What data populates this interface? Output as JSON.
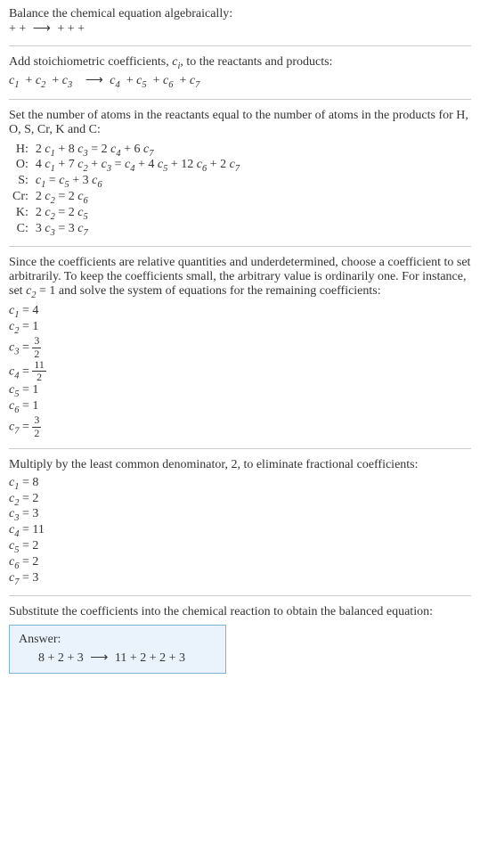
{
  "intro": {
    "line1": "Balance the chemical equation algebraically:",
    "line2_left": " +  + ",
    "line2_right": " +  +  + "
  },
  "step1": {
    "text": "Add stoichiometric coefficients, ",
    "ci": "c",
    "ci_sub": "i",
    "text2": ", to the reactants and products:",
    "eq_parts": [
      "c",
      "1",
      "  + c",
      "2",
      "  + c",
      "3",
      " ",
      "c",
      "4",
      "  + c",
      "5",
      "  + c",
      "6",
      "  + c",
      "7"
    ]
  },
  "step2": {
    "text": "Set the number of atoms in the reactants equal to the number of atoms in the products for H, O, S, Cr, K and C:",
    "rows": [
      {
        "elem": "H:",
        "eq": "2 c₁ + 8 c₃ = 2 c₄ + 6 c₇"
      },
      {
        "elem": "O:",
        "eq": "4 c₁ + 7 c₂ + c₃ = c₄ + 4 c₅ + 12 c₆ + 2 c₇"
      },
      {
        "elem": "S:",
        "eq": "c₁ = c₅ + 3 c₆"
      },
      {
        "elem": "Cr:",
        "eq": "2 c₂ = 2 c₆"
      },
      {
        "elem": "K:",
        "eq": "2 c₂ = 2 c₅"
      },
      {
        "elem": "C:",
        "eq": "3 c₃ = 3 c₇"
      }
    ]
  },
  "step3": {
    "text": "Since the coefficients are relative quantities and underdetermined, choose a coefficient to set arbitrarily. To keep the coefficients small, the arbitrary value is ordinarily one. For instance, set c₂ = 1 and solve the system of equations for the remaining coefficients:",
    "coeffs": [
      {
        "c": "c₁ = 4"
      },
      {
        "c": "c₂ = 1"
      },
      {
        "c": "c₃ = ",
        "frac_num": "3",
        "frac_den": "2"
      },
      {
        "c": "c₄ = ",
        "frac_num": "11",
        "frac_den": "2"
      },
      {
        "c": "c₅ = 1"
      },
      {
        "c": "c₆ = 1"
      },
      {
        "c": "c₇ = ",
        "frac_num": "3",
        "frac_den": "2"
      }
    ]
  },
  "step4": {
    "text": "Multiply by the least common denominator, 2, to eliminate fractional coefficients:",
    "coeffs": [
      "c₁ = 8",
      "c₂ = 2",
      "c₃ = 3",
      "c₄ = 11",
      "c₅ = 2",
      "c₆ = 2",
      "c₇ = 3"
    ]
  },
  "step5": {
    "text": "Substitute the coefficients into the chemical reaction to obtain the balanced equation:"
  },
  "answer": {
    "label": "Answer:",
    "eq_left": "8  + 2  + 3 ",
    "eq_right": "11  + 2  + 2  + 3"
  },
  "arrow": "⟶"
}
